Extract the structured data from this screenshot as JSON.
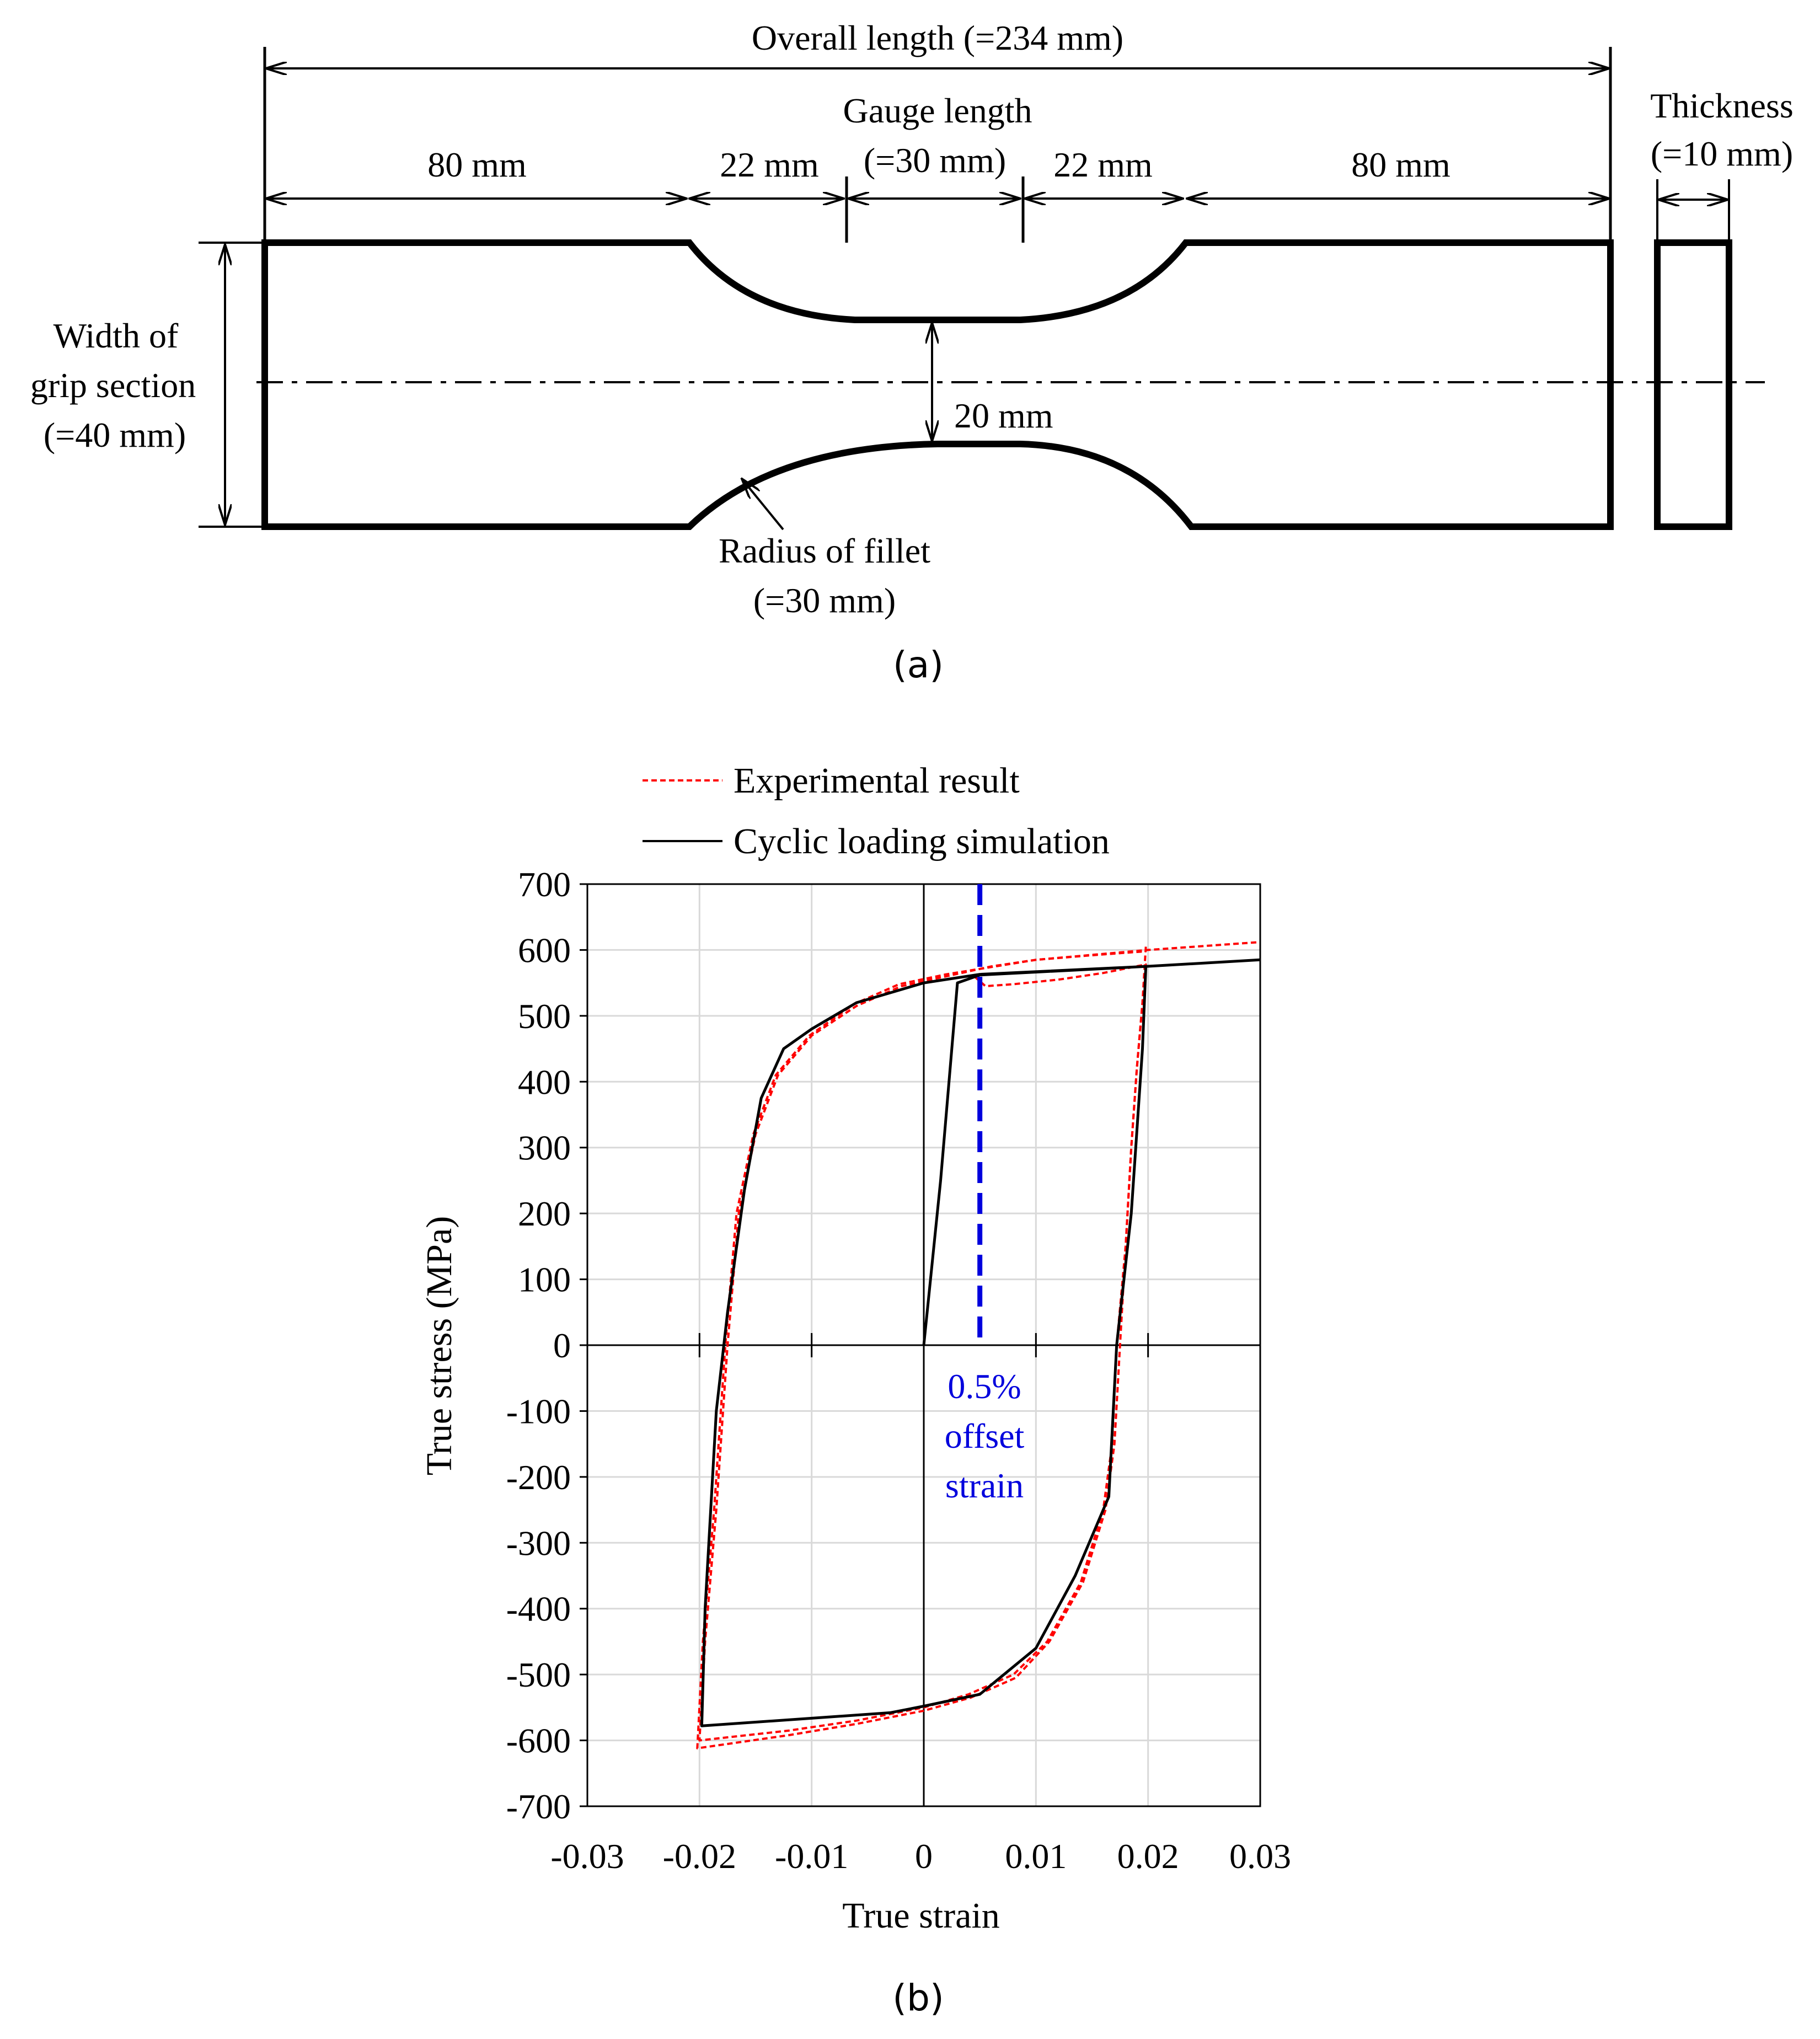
{
  "panel_a": {
    "overall_length": "Overall length (=234 mm)",
    "grip_left": "80 mm",
    "grip_right": "80 mm",
    "fillet_left": "22 mm",
    "fillet_right": "22 mm",
    "gauge_line1": "Gauge length",
    "gauge_line2": "(=30 mm)",
    "thickness_line1": "Thickness",
    "thickness_line2": "(=10 mm)",
    "width_line1": "Width of",
    "width_line2": "grip section",
    "width_line3": "(=40 mm)",
    "neck_width": "20 mm",
    "radius_line1": "Radius of fillet",
    "radius_line2": "(=30 mm)",
    "label": "(a)"
  },
  "panel_b": {
    "label": "(b)",
    "annotation_line1": "0.5%",
    "annotation_line2": "offset",
    "annotation_line3": "strain",
    "colors": {
      "experimental": "#ff0000",
      "simulation": "#000000",
      "offset_line": "#0000dd"
    }
  },
  "chart_data": {
    "type": "line",
    "xlabel": "True strain",
    "ylabel": "True stress (MPa)",
    "xlim": [
      -0.03,
      0.03
    ],
    "ylim": [
      -700,
      700
    ],
    "x_ticks": [
      "-0.03",
      "-0.02",
      "-0.01",
      "0",
      "0.01",
      "0.02",
      "0.03"
    ],
    "y_ticks": [
      "700",
      "600",
      "500",
      "400",
      "300",
      "200",
      "100",
      "0",
      "-100",
      "-200",
      "-300",
      "-400",
      "-500",
      "-600",
      "-700"
    ],
    "grid": true,
    "legend_position": "top",
    "offset_strain": 0.005,
    "series": [
      {
        "name": "Experimental result",
        "style": "dashed",
        "loops": [
          [
            [
              0.0045,
              560
            ],
            [
              0.0055,
              545
            ],
            [
              0.008,
              548
            ],
            [
              0.012,
              555
            ],
            [
              0.016,
              565
            ],
            [
              0.0198,
              578
            ],
            [
              0.0195,
              520
            ],
            [
              0.019,
              420
            ],
            [
              0.0185,
              300
            ],
            [
              0.018,
              150
            ],
            [
              0.0172,
              0
            ],
            [
              0.0168,
              -150
            ],
            [
              0.016,
              -250
            ],
            [
              0.014,
              -360
            ],
            [
              0.011,
              -450
            ],
            [
              0.008,
              -500
            ],
            [
              0.004,
              -530
            ],
            [
              0.0,
              -550
            ],
            [
              -0.006,
              -570
            ],
            [
              -0.012,
              -585
            ],
            [
              -0.02,
              -600
            ],
            [
              -0.0195,
              -450
            ],
            [
              -0.0185,
              -250
            ],
            [
              -0.0175,
              0
            ],
            [
              -0.0165,
              200
            ],
            [
              -0.015,
              320
            ],
            [
              -0.013,
              410
            ],
            [
              -0.01,
              470
            ],
            [
              -0.006,
              515
            ],
            [
              -0.002,
              545
            ],
            [
              0.002,
              560
            ],
            [
              0.006,
              575
            ],
            [
              0.01,
              585
            ],
            [
              0.015,
              592
            ],
            [
              0.0198,
              598
            ]
          ],
          [
            [
              0.0198,
              605
            ],
            [
              0.0195,
              520
            ],
            [
              0.019,
              420
            ],
            [
              0.0185,
              300
            ],
            [
              0.018,
              150
            ],
            [
              0.0175,
              0
            ],
            [
              0.017,
              -150
            ],
            [
              0.0162,
              -250
            ],
            [
              0.0142,
              -360
            ],
            [
              0.0112,
              -450
            ],
            [
              0.0082,
              -505
            ],
            [
              0.0042,
              -535
            ],
            [
              0.0,
              -555
            ],
            [
              -0.006,
              -575
            ],
            [
              -0.012,
              -592
            ],
            [
              -0.0202,
              -612
            ],
            [
              -0.0197,
              -450
            ],
            [
              -0.0187,
              -250
            ],
            [
              -0.0177,
              0
            ],
            [
              -0.0167,
              200
            ],
            [
              -0.0152,
              320
            ],
            [
              -0.0132,
              410
            ],
            [
              -0.0102,
              470
            ],
            [
              -0.0062,
              518
            ],
            [
              -0.0022,
              548
            ],
            [
              0.002,
              563
            ],
            [
              0.01,
              585
            ],
            [
              0.02,
              600
            ],
            [
              0.03,
              612
            ]
          ]
        ]
      },
      {
        "name": "Cyclic loading simulation",
        "style": "solid",
        "loops": [
          [
            [
              0.0,
              0
            ],
            [
              0.0015,
              250
            ],
            [
              0.0025,
              450
            ],
            [
              0.003,
              550
            ],
            [
              0.005,
              562
            ],
            [
              0.0198,
              575
            ],
            [
              0.0195,
              450
            ],
            [
              0.0185,
              200
            ],
            [
              0.0172,
              0
            ],
            [
              0.0165,
              -230
            ],
            [
              0.0135,
              -350
            ],
            [
              0.01,
              -460
            ],
            [
              0.005,
              -530
            ],
            [
              0.0,
              -548
            ],
            [
              -0.003,
              -558
            ],
            [
              -0.0198,
              -578
            ],
            [
              -0.0195,
              -400
            ],
            [
              -0.0185,
              -100
            ],
            [
              -0.0175,
              50
            ],
            [
              -0.016,
              235
            ],
            [
              -0.0145,
              375
            ],
            [
              -0.0125,
              450
            ],
            [
              -0.01,
              480
            ],
            [
              -0.006,
              520
            ],
            [
              -0.003,
              535
            ],
            [
              0.0,
              550
            ],
            [
              0.005,
              563
            ],
            [
              0.0198,
              575
            ],
            [
              0.03,
              585
            ]
          ]
        ]
      }
    ]
  }
}
